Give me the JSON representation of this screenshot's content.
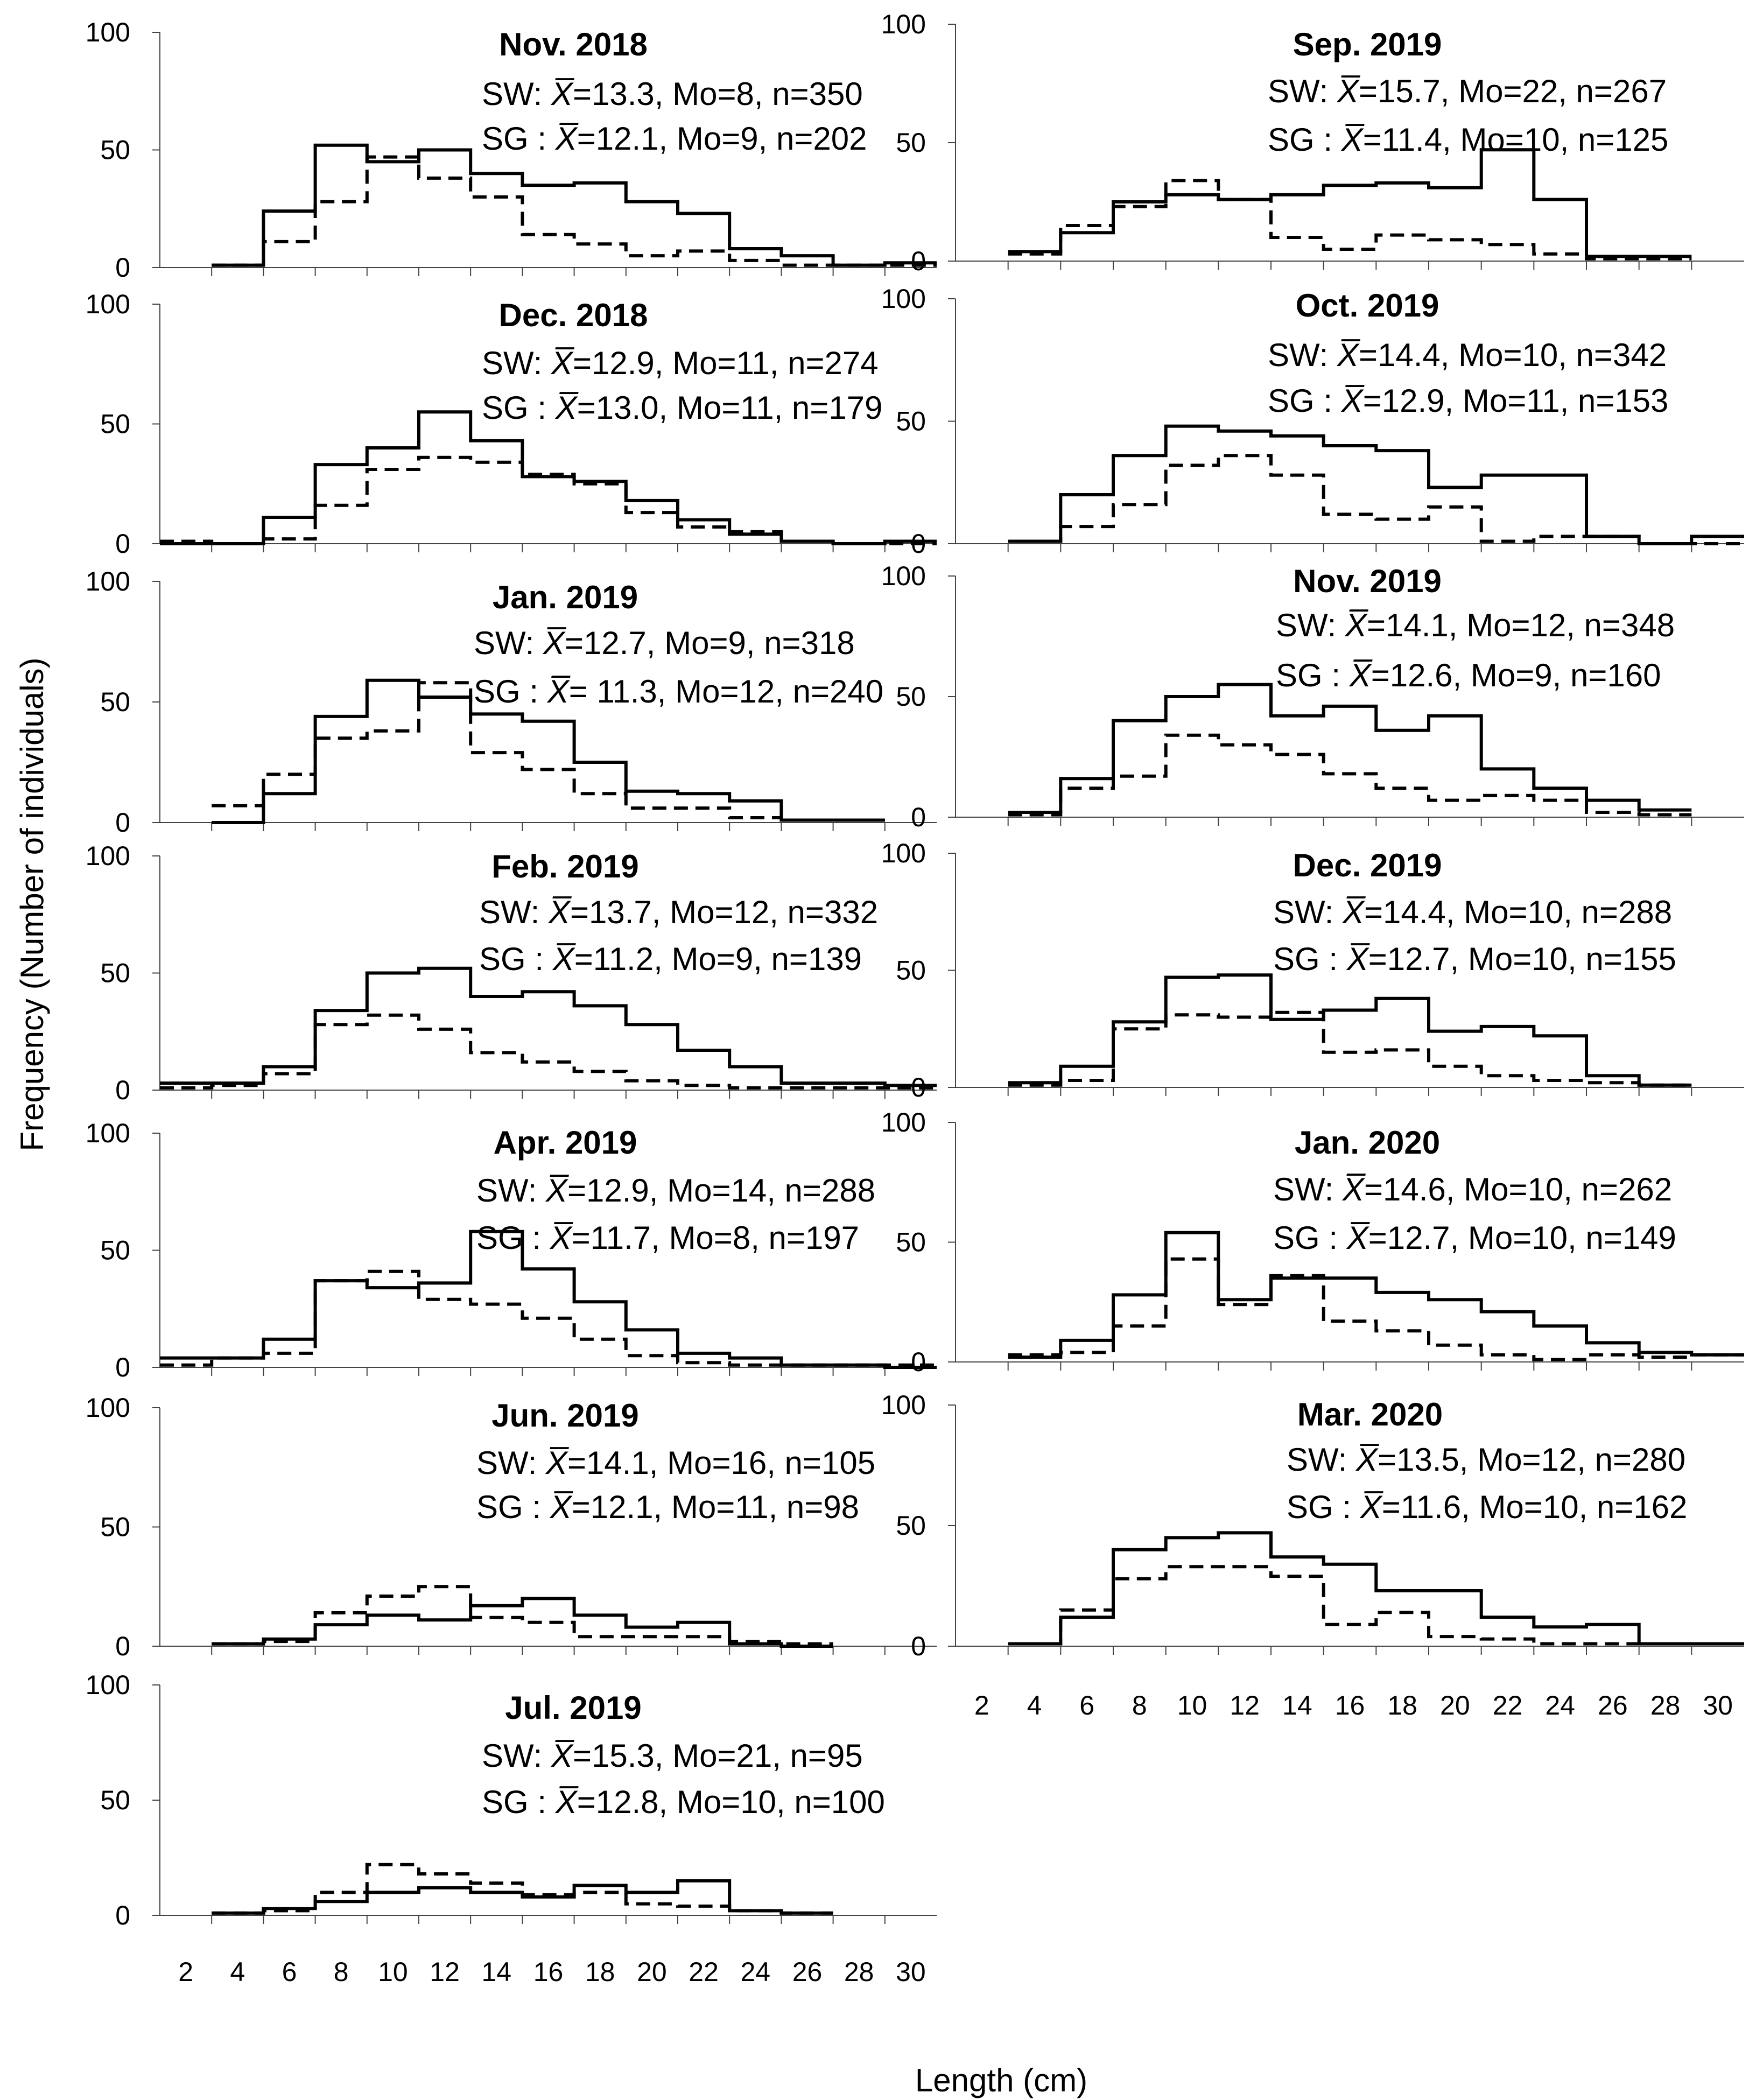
{
  "figure": {
    "x_axis_label": "Length (cm)",
    "y_axis_label": "Frequency (Number of individuals)",
    "x_ticks": [
      "2",
      "4",
      "6",
      "8",
      "10",
      "12",
      "14",
      "16",
      "18",
      "20",
      "22",
      "24",
      "26",
      "28",
      "30"
    ],
    "y_ticks": [
      "0",
      "50",
      "100"
    ],
    "line_color": "#000000",
    "legend": [
      {
        "name": "SW",
        "style": "solid"
      },
      {
        "name": "SG",
        "style": "dashed"
      }
    ]
  },
  "chart_data": [
    {
      "type": "histogram",
      "title": "Nov. 2018",
      "xlabel": "Length (cm)",
      "ylabel": "Frequency (Number of individuals)",
      "xlim": [
        1,
        31
      ],
      "ylim": [
        0,
        100
      ],
      "bin_edges": [
        3,
        5,
        7,
        9,
        11,
        13,
        15,
        17,
        19,
        21,
        23,
        25,
        27,
        29,
        31
      ],
      "sw": {
        "label": "SW:",
        "stat": "=13.3, Mo=8, n=350",
        "values": [
          1,
          24,
          52,
          45,
          50,
          40,
          35,
          36,
          28,
          23,
          8,
          5,
          1,
          2
        ]
      },
      "sg": {
        "label": "SG :",
        "stat": "=12.1, Mo=9, n=202",
        "values": [
          1,
          11,
          28,
          47,
          38,
          30,
          14,
          10,
          5,
          7,
          3,
          1,
          1,
          1
        ]
      }
    },
    {
      "type": "histogram",
      "title": "Dec. 2018",
      "xlabel": "Length (cm)",
      "ylabel": "Frequency (Number of individuals)",
      "xlim": [
        1,
        31
      ],
      "ylim": [
        0,
        100
      ],
      "bin_edges": [
        1,
        3,
        5,
        7,
        9,
        11,
        13,
        15,
        17,
        19,
        21,
        23,
        25,
        27,
        29,
        31
      ],
      "sw": {
        "label": "SW:",
        "stat": "=12.9, Mo=11, n=274",
        "values": [
          0,
          0,
          11,
          33,
          40,
          55,
          43,
          28,
          26,
          18,
          10,
          4,
          1,
          0,
          1
        ]
      },
      "sg": {
        "label": "SG :",
        "stat": "=13.0, Mo=11, n=179",
        "values": [
          1,
          0,
          2,
          16,
          31,
          36,
          34,
          29,
          25,
          13,
          7,
          5,
          1,
          0,
          0
        ]
      }
    },
    {
      "type": "histogram",
      "title": "Jan. 2019",
      "xlabel": "Length (cm)",
      "ylabel": "Frequency (Number of individuals)",
      "xlim": [
        1,
        31
      ],
      "ylim": [
        0,
        100
      ],
      "bin_edges": [
        3,
        5,
        7,
        9,
        11,
        13,
        15,
        17,
        19,
        21,
        23,
        25,
        27,
        29
      ],
      "sw": {
        "label": "SW:",
        "stat": "=12.7, Mo=9, n=318",
        "values": [
          0,
          12,
          44,
          59,
          52,
          45,
          42,
          25,
          13,
          12,
          9,
          1,
          1
        ]
      },
      "sg": {
        "label": "SG :",
        "stat": "= 11.3, Mo=12, n=240",
        "values": [
          7,
          20,
          35,
          38,
          58,
          29,
          22,
          12,
          6,
          6,
          2,
          1,
          1
        ]
      }
    },
    {
      "type": "histogram",
      "title": "Feb. 2019",
      "xlabel": "Length (cm)",
      "ylabel": "Frequency (Number of individuals)",
      "xlim": [
        1,
        31
      ],
      "ylim": [
        0,
        100
      ],
      "bin_edges": [
        1,
        3,
        5,
        7,
        9,
        11,
        13,
        15,
        17,
        19,
        21,
        23,
        25,
        27,
        29,
        31
      ],
      "sw": {
        "label": "SW:",
        "stat": "=13.7, Mo=12, n=332",
        "values": [
          3,
          3,
          10,
          34,
          50,
          52,
          40,
          42,
          36,
          28,
          17,
          10,
          3,
          3,
          2
        ]
      },
      "sg": {
        "label": "SG :",
        "stat": "=11.2, Mo=9, n=139",
        "values": [
          1,
          2,
          7,
          28,
          32,
          26,
          16,
          12,
          8,
          4,
          2,
          1,
          1,
          1,
          1
        ]
      }
    },
    {
      "type": "histogram",
      "title": "Apr. 2019",
      "xlabel": "Length (cm)",
      "ylabel": "Frequency (Number of individuals)",
      "xlim": [
        1,
        31
      ],
      "ylim": [
        0,
        100
      ],
      "bin_edges": [
        1,
        3,
        5,
        7,
        9,
        11,
        13,
        15,
        17,
        19,
        21,
        23,
        25,
        27,
        29,
        31
      ],
      "sw": {
        "label": "SW:",
        "stat": "=12.9, Mo=14, n=288",
        "values": [
          4,
          4,
          12,
          37,
          34,
          36,
          58,
          42,
          28,
          16,
          6,
          4,
          1,
          1,
          0
        ]
      },
      "sg": {
        "label": "SG :",
        "stat": "=11.7, Mo=8, n=197",
        "values": [
          1,
          4,
          6,
          37,
          41,
          29,
          27,
          21,
          12,
          5,
          2,
          1,
          1,
          1,
          1
        ]
      }
    },
    {
      "type": "histogram",
      "title": "Jun. 2019",
      "xlabel": "Length (cm)",
      "ylabel": "Frequency (Number of individuals)",
      "xlim": [
        1,
        31
      ],
      "ylim": [
        0,
        100
      ],
      "bin_edges": [
        3,
        5,
        7,
        9,
        11,
        13,
        15,
        17,
        19,
        21,
        23,
        25,
        27
      ],
      "sw": {
        "label": "SW:",
        "stat": "=14.1, Mo=16, n=105",
        "values": [
          1,
          3,
          9,
          13,
          11,
          17,
          20,
          13,
          8,
          10,
          1,
          0
        ]
      },
      "sg": {
        "label": "SG :",
        "stat": "=12.1, Mo=11, n=98",
        "values": [
          1,
          2,
          14,
          21,
          25,
          12,
          10,
          4,
          4,
          4,
          2,
          1
        ]
      }
    },
    {
      "type": "histogram",
      "title": "Jul. 2019",
      "xlabel": "Length (cm)",
      "ylabel": "Frequency (Number of individuals)",
      "xlim": [
        1,
        31
      ],
      "ylim": [
        0,
        100
      ],
      "bin_edges": [
        3,
        5,
        7,
        9,
        11,
        13,
        15,
        17,
        19,
        21,
        23,
        25,
        27
      ],
      "sw": {
        "label": "SW:",
        "stat": "=15.3, Mo=21, n=95",
        "values": [
          1,
          3,
          6,
          10,
          12,
          10,
          8,
          13,
          10,
          15,
          2,
          1
        ]
      },
      "sg": {
        "label": "SG :",
        "stat": "=12.8, Mo=10, n=100",
        "values": [
          1,
          2,
          10,
          22,
          18,
          14,
          9,
          10,
          5,
          4,
          2,
          1
        ]
      }
    },
    {
      "type": "histogram",
      "title": "Sep. 2019",
      "xlabel": "Length (cm)",
      "ylabel": "Frequency (Number of individuals)",
      "xlim": [
        1,
        31
      ],
      "ylim": [
        0,
        100
      ],
      "bin_edges": [
        3,
        5,
        7,
        9,
        11,
        13,
        15,
        17,
        19,
        21,
        23,
        25,
        27,
        29
      ],
      "sw": {
        "label": "SW:",
        "stat": "=15.7, Mo=22, n=267",
        "values": [
          4,
          12,
          25,
          28,
          26,
          28,
          32,
          33,
          31,
          47,
          26,
          2,
          2
        ]
      },
      "sg": {
        "label": "SG :",
        "stat": "=11.4, Mo=10, n=125",
        "values": [
          3,
          15,
          23,
          34,
          26,
          10,
          5,
          11,
          9,
          7,
          3,
          1,
          1
        ]
      }
    },
    {
      "type": "histogram",
      "title": "Oct. 2019",
      "xlabel": "Length (cm)",
      "ylabel": "Frequency (Number of individuals)",
      "xlim": [
        1,
        31
      ],
      "ylim": [
        0,
        100
      ],
      "bin_edges": [
        3,
        5,
        7,
        9,
        11,
        13,
        15,
        17,
        19,
        21,
        23,
        25,
        27,
        29,
        31
      ],
      "sw": {
        "label": "SW:",
        "stat": "=14.4, Mo=10, n=342",
        "values": [
          1,
          20,
          36,
          48,
          46,
          44,
          40,
          38,
          23,
          28,
          28,
          3,
          0,
          3
        ]
      },
      "sg": {
        "label": "SG :",
        "stat": "=12.9, Mo=11, n=153",
        "values": [
          1,
          7,
          16,
          32,
          36,
          28,
          12,
          10,
          15,
          1,
          3,
          3,
          0,
          0
        ]
      }
    },
    {
      "type": "histogram",
      "title": "Nov. 2019",
      "xlabel": "Length (cm)",
      "ylabel": "Frequency (Number of individuals)",
      "xlim": [
        1,
        31
      ],
      "ylim": [
        0,
        100
      ],
      "bin_edges": [
        3,
        5,
        7,
        9,
        11,
        13,
        15,
        17,
        19,
        21,
        23,
        25,
        27,
        29
      ],
      "sw": {
        "label": "SW:",
        "stat": "=14.1, Mo=12, n=348",
        "values": [
          2,
          16,
          40,
          50,
          55,
          42,
          46,
          36,
          42,
          20,
          12,
          7,
          3
        ]
      },
      "sg": {
        "label": "SG :",
        "stat": "=12.6, Mo=9, n=160",
        "values": [
          1,
          12,
          17,
          34,
          30,
          26,
          18,
          12,
          7,
          9,
          7,
          2,
          1
        ]
      }
    },
    {
      "type": "histogram",
      "title": "Dec. 2019",
      "xlabel": "Length (cm)",
      "ylabel": "Frequency (Number of individuals)",
      "xlim": [
        1,
        31
      ],
      "ylim": [
        0,
        100
      ],
      "bin_edges": [
        3,
        5,
        7,
        9,
        11,
        13,
        15,
        17,
        19,
        21,
        23,
        25,
        27,
        29
      ],
      "sw": {
        "label": "SW:",
        "stat": "=14.4, Mo=10, n=288",
        "values": [
          2,
          9,
          28,
          47,
          48,
          29,
          33,
          38,
          24,
          26,
          22,
          5,
          1
        ]
      },
      "sg": {
        "label": "SG :",
        "stat": "=12.7, Mo=10, n=155",
        "values": [
          1,
          3,
          25,
          31,
          30,
          32,
          15,
          16,
          9,
          5,
          3,
          2,
          1
        ]
      }
    },
    {
      "type": "histogram",
      "title": "Jan. 2020",
      "xlabel": "Length (cm)",
      "ylabel": "Frequency (Number of individuals)",
      "xlim": [
        1,
        31
      ],
      "ylim": [
        0,
        100
      ],
      "bin_edges": [
        3,
        5,
        7,
        9,
        11,
        13,
        15,
        17,
        19,
        21,
        23,
        25,
        27,
        29,
        31
      ],
      "sw": {
        "label": "SW:",
        "stat": "=14.6, Mo=10, n=262",
        "values": [
          2,
          9,
          28,
          54,
          26,
          35,
          35,
          29,
          26,
          21,
          15,
          8,
          4,
          3
        ]
      },
      "sg": {
        "label": "SG :",
        "stat": "=12.7, Mo=10, n=149",
        "values": [
          3,
          4,
          15,
          43,
          24,
          36,
          17,
          13,
          7,
          3,
          1,
          3,
          2,
          3
        ]
      }
    },
    {
      "type": "histogram",
      "title": "Mar. 2020",
      "xlabel": "Length (cm)",
      "ylabel": "Frequency (Number of individuals)",
      "xlim": [
        1,
        31
      ],
      "ylim": [
        0,
        100
      ],
      "bin_edges": [
        3,
        5,
        7,
        9,
        11,
        13,
        15,
        17,
        19,
        21,
        23,
        25,
        27,
        29,
        31
      ],
      "sw": {
        "label": "SW:",
        "stat": "=13.5, Mo=12, n=280",
        "values": [
          1,
          12,
          40,
          45,
          47,
          37,
          34,
          23,
          23,
          12,
          8,
          9,
          1,
          1
        ]
      },
      "sg": {
        "label": "SG :",
        "stat": "=11.6, Mo=10, n=162",
        "values": [
          1,
          15,
          28,
          33,
          33,
          29,
          9,
          14,
          4,
          3,
          1,
          1,
          1,
          1
        ]
      }
    }
  ]
}
